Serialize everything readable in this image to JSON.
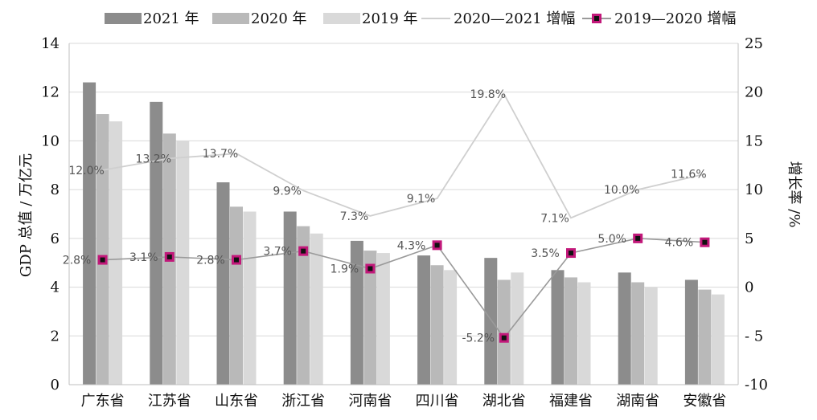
{
  "chart_data": {
    "type": "bar",
    "categories": [
      "广东省",
      "江苏省",
      "山东省",
      "浙江省",
      "河南省",
      "四川省",
      "湖北省",
      "福建省",
      "湖南省",
      "安徽省"
    ],
    "series": [
      {
        "name": "2021 年",
        "kind": "bar",
        "axis": "left",
        "color": "#8c8c8c",
        "values": [
          12.4,
          11.6,
          8.3,
          7.1,
          5.9,
          5.3,
          5.2,
          4.7,
          4.6,
          4.3
        ]
      },
      {
        "name": "2020 年",
        "kind": "bar",
        "axis": "left",
        "color": "#b9b9b9",
        "values": [
          11.1,
          10.3,
          7.3,
          6.5,
          5.5,
          4.9,
          4.3,
          4.4,
          4.2,
          3.9
        ]
      },
      {
        "name": "2019 年",
        "kind": "bar",
        "axis": "left",
        "color": "#d9d9d9",
        "values": [
          10.8,
          10.0,
          7.1,
          6.2,
          5.4,
          4.7,
          4.6,
          4.2,
          4.0,
          3.7
        ]
      },
      {
        "name": "2020—2021 增幅",
        "kind": "line",
        "axis": "right",
        "color": "#cfcfcf",
        "values": [
          12.0,
          13.2,
          13.7,
          9.9,
          7.3,
          9.1,
          19.8,
          7.1,
          10.0,
          11.6
        ],
        "labels": [
          "12.0%",
          "13.2%",
          "13.7%",
          "9.9%",
          "7.3%",
          "9.1%",
          "19.8%",
          "7.1%",
          "10.0%",
          "11.6%"
        ]
      },
      {
        "name": "2019—2020 增幅",
        "kind": "line",
        "axis": "right",
        "color": "#9a9a9a",
        "marker_color": "#c2187a",
        "values": [
          2.8,
          3.1,
          2.8,
          3.7,
          1.9,
          4.3,
          -5.2,
          3.5,
          5.0,
          4.6
        ],
        "labels": [
          "2.8%",
          "3.1%",
          "2.8%",
          "3.7%",
          "1.9%",
          "4.3%",
          "-5.2%",
          "3.5%",
          "5.0%",
          "4.6%"
        ]
      }
    ],
    "ylabel": "GDP 总值 / 万亿元",
    "y2label": "增长率 /%",
    "ylim": [
      0,
      14
    ],
    "yticks": [
      "0",
      "2",
      "4",
      "6",
      "8",
      "10",
      "12",
      "14"
    ],
    "y2lim": [
      -10,
      25
    ],
    "y2ticks": [
      "-10",
      "- 5",
      "0",
      "5",
      "10",
      "15",
      "20",
      "25"
    ],
    "grid": true,
    "legend": "top"
  }
}
